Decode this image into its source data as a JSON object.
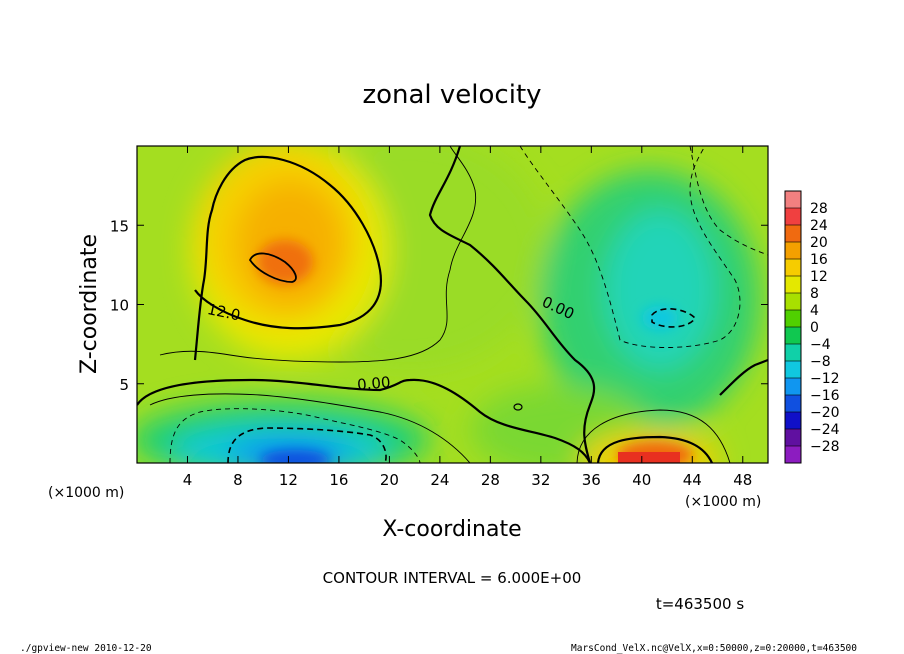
{
  "chart_data": {
    "type": "heatmap",
    "title": "zonal velocity",
    "xlabel": "X-coordinate",
    "ylabel": "Z-coordinate",
    "x_unit": "(×1000 m)",
    "xlim": [
      0,
      50
    ],
    "ylim": [
      0,
      20
    ],
    "x_ticks": [
      4,
      8,
      12,
      16,
      20,
      24,
      28,
      32,
      36,
      40,
      44,
      48
    ],
    "y_ticks": [
      5,
      10,
      15
    ],
    "contour_interval_text": "CONTOUR INTERVAL = 6.000E+00",
    "time_text": "t=463500 s",
    "contour_labels": [
      {
        "text": "12.0",
        "x": 6.8,
        "z": 9.2
      },
      {
        "text": "0.00",
        "x": 18.8,
        "z": 4.7
      },
      {
        "text": "0.00",
        "x": 33.2,
        "z": 9.5
      }
    ],
    "colorbar": {
      "levels": [
        "28",
        "24",
        "20",
        "16",
        "12",
        "8",
        "4",
        "0",
        "−4",
        "−8",
        "−12",
        "−16",
        "−20",
        "−24",
        "−28"
      ],
      "colors": [
        "#f28080",
        "#f04040",
        "#f06a10",
        "#f4a000",
        "#f6cc00",
        "#e4e800",
        "#a8e000",
        "#50d000",
        "#10c850",
        "#10d0a8",
        "#10c8e0",
        "#1096f0",
        "#1050e0",
        "#1010c8",
        "#6010a0",
        "#8c1cc0"
      ]
    },
    "features": [
      {
        "name": "positive jet max",
        "x": 11.5,
        "z": 12.5,
        "value": 17
      },
      {
        "name": "negative core",
        "x": 42,
        "z": 9,
        "value": -7
      },
      {
        "name": "near-surface negative",
        "x": 13,
        "z": 1,
        "value": -9
      },
      {
        "name": "near-surface positive",
        "x": 42,
        "z": 0.7,
        "value": 20
      }
    ]
  },
  "footer": {
    "left": "./gpview-new  2010-12-20",
    "right": "MarsCond_VelX.nc@VelX,x=0:50000,z=0:20000,t=463500"
  }
}
